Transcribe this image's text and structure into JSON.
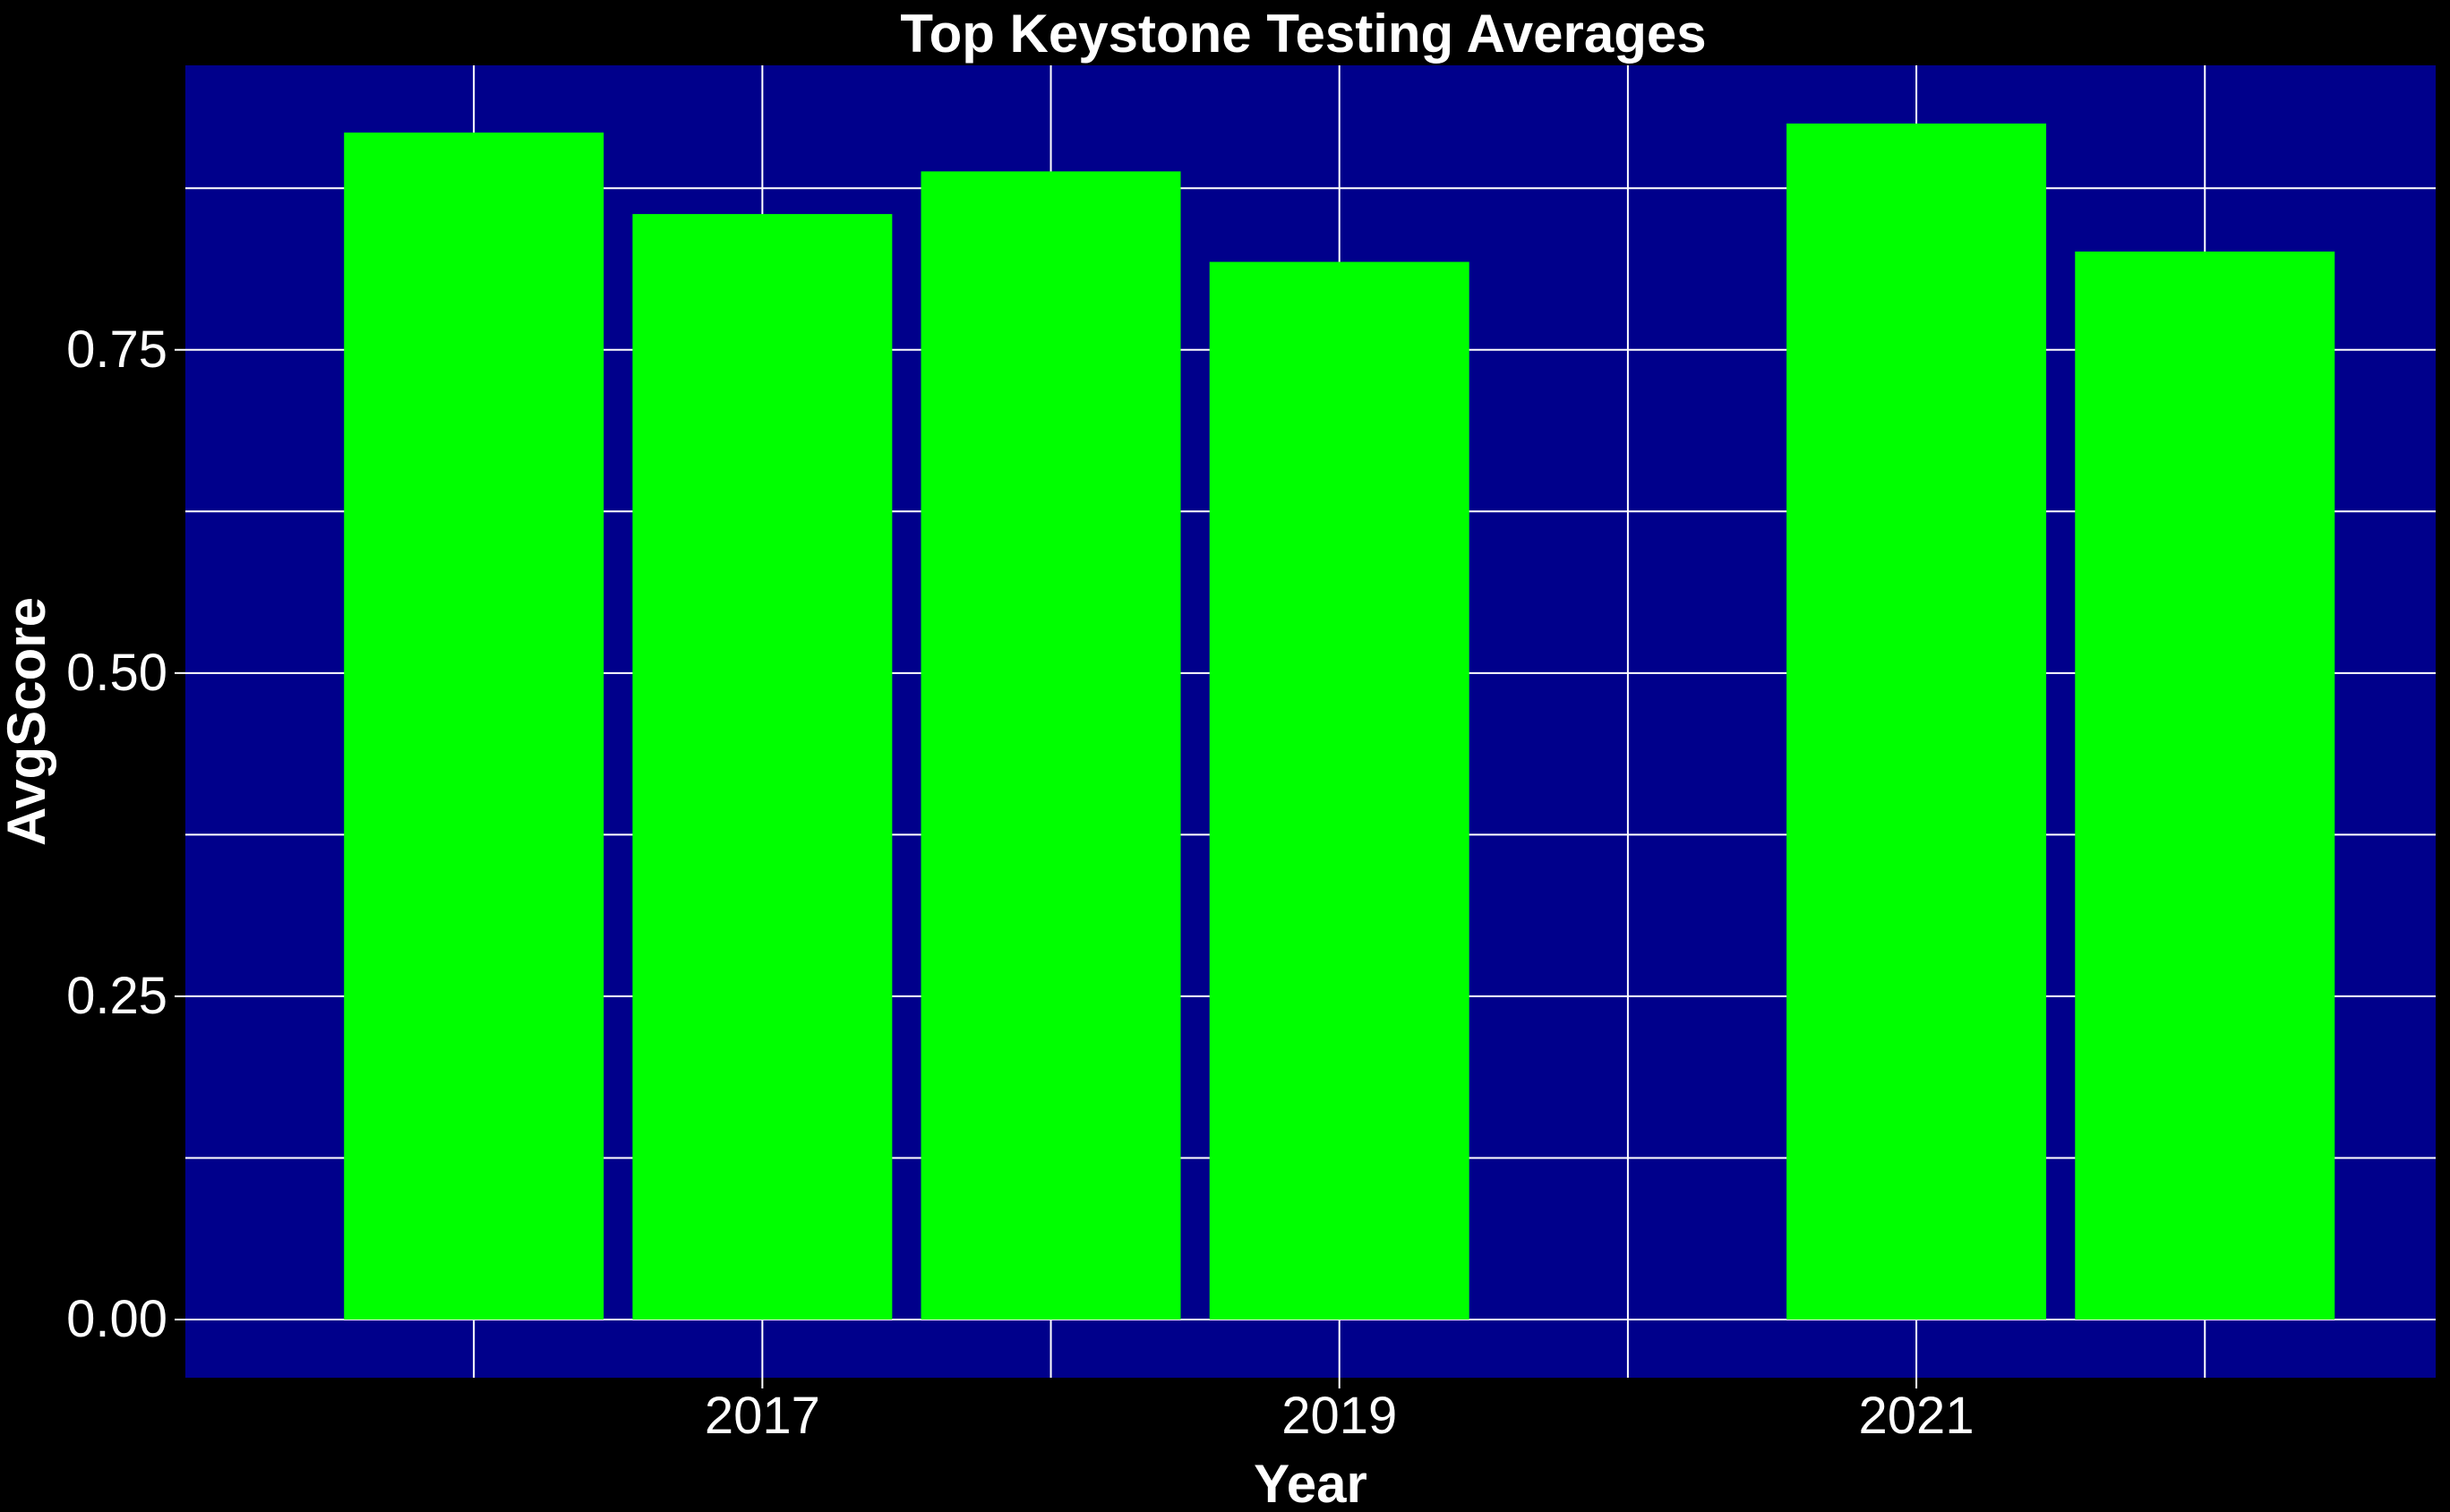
{
  "chart_data": {
    "type": "bar",
    "title": "Top Keystone Testing Averages",
    "xlabel": "Year",
    "ylabel": "AvgScore",
    "categories": [
      2016,
      2017,
      2018,
      2019,
      2021,
      2022
    ],
    "values": [
      0.918,
      0.855,
      0.888,
      0.818,
      0.925,
      0.826
    ],
    "xlim": [
      2015.0,
      2022.8
    ],
    "ylim": [
      -0.045,
      0.97
    ],
    "x_ticks": [
      2017,
      2019,
      2021
    ],
    "x_tick_labels": [
      "2017",
      "2019",
      "2021"
    ],
    "x_minor_ticks": [
      2016,
      2018,
      2020,
      2022
    ],
    "y_ticks": [
      0,
      0.25,
      0.5,
      0.75
    ],
    "y_tick_labels": [
      "0.00",
      "0.25",
      "0.50",
      "0.75"
    ],
    "y_minor_ticks": [
      0.125,
      0.375,
      0.625,
      0.875
    ],
    "bar_width_years": 0.9,
    "grid": true,
    "legend": "none",
    "colors": {
      "background": "#000000",
      "panel": "#00008B",
      "bar": "#00FF00",
      "grid": "#FFFFFF",
      "text": "#FFFFFF"
    }
  }
}
